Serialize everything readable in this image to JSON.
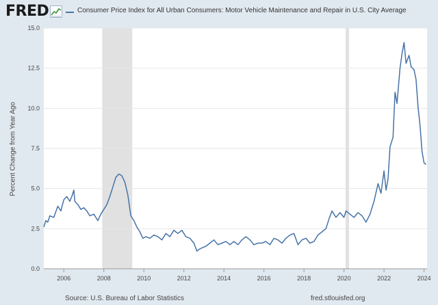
{
  "header": {
    "logo_text": "FRED",
    "logo_icon": "line-chart-icon",
    "legend_label": "Consumer Price Index for All Urban Consumers: Motor Vehicle Maintenance and Repair in U.S. City Average"
  },
  "footer": {
    "source": "Source: U.S. Bureau of Labor Statistics",
    "site": "fred.stlouisfed.org"
  },
  "colors": {
    "page_bg": "#e1e9f0",
    "plot_bg": "#ffffff",
    "series": "#4572a7",
    "recession": "#e1e1e1",
    "grid": "#e6e6e6"
  },
  "chart_data": {
    "type": "line",
    "title": "Consumer Price Index for All Urban Consumers: Motor Vehicle Maintenance and Repair in U.S. City Average",
    "xlabel": "",
    "ylabel": "Percent Change from Year Ago",
    "xlim": [
      2005.0,
      2024.15
    ],
    "ylim": [
      0.0,
      15.0
    ],
    "x_ticks": [
      2006,
      2008,
      2010,
      2012,
      2014,
      2016,
      2018,
      2020,
      2022,
      2024
    ],
    "x_tick_labels": [
      "2006",
      "2008",
      "2010",
      "2012",
      "2014",
      "2016",
      "2018",
      "2020",
      "2022",
      "2024"
    ],
    "y_ticks": [
      0.0,
      2.5,
      5.0,
      7.5,
      10.0,
      12.5,
      15.0
    ],
    "y_tick_labels": [
      "0.0",
      "2.5",
      "5.0",
      "7.5",
      "10.0",
      "12.5",
      "15.0"
    ],
    "grid": true,
    "recessions": [
      {
        "start": 2007.92,
        "end": 2009.42
      },
      {
        "start": 2020.08,
        "end": 2020.25
      }
    ],
    "series": [
      {
        "name": "Consumer Price Index for All Urban Consumers: Motor Vehicle Maintenance and Repair in U.S. City Average",
        "x": [
          2005.0,
          2005.1,
          2005.2,
          2005.3,
          2005.5,
          2005.7,
          2005.85,
          2006.0,
          2006.15,
          2006.3,
          2006.4,
          2006.5,
          2006.55,
          2006.7,
          2006.85,
          2007.0,
          2007.15,
          2007.3,
          2007.5,
          2007.7,
          2007.85,
          2008.0,
          2008.15,
          2008.3,
          2008.45,
          2008.6,
          2008.75,
          2008.9,
          2009.05,
          2009.2,
          2009.35,
          2009.5,
          2009.65,
          2009.8,
          2009.95,
          2010.1,
          2010.3,
          2010.5,
          2010.7,
          2010.9,
          2011.1,
          2011.3,
          2011.5,
          2011.7,
          2011.9,
          2012.1,
          2012.3,
          2012.5,
          2012.65,
          2012.75,
          2012.9,
          2013.1,
          2013.3,
          2013.5,
          2013.7,
          2013.9,
          2014.1,
          2014.3,
          2014.5,
          2014.7,
          2014.9,
          2015.1,
          2015.3,
          2015.5,
          2015.7,
          2015.9,
          2016.1,
          2016.3,
          2016.5,
          2016.7,
          2016.9,
          2017.1,
          2017.3,
          2017.5,
          2017.7,
          2017.9,
          2018.1,
          2018.3,
          2018.5,
          2018.7,
          2018.9,
          2019.1,
          2019.25,
          2019.4,
          2019.6,
          2019.8,
          2020.0,
          2020.1,
          2020.3,
          2020.5,
          2020.7,
          2020.9,
          2021.1,
          2021.3,
          2021.5,
          2021.7,
          2021.85,
          2022.0,
          2022.1,
          2022.2,
          2022.3,
          2022.45,
          2022.55,
          2022.65,
          2022.8,
          2022.9,
          2023.0,
          2023.1,
          2023.25,
          2023.35,
          2023.5,
          2023.6,
          2023.7,
          2023.8,
          2023.9,
          2024.0,
          2024.1
        ],
        "y": [
          2.6,
          3.0,
          2.9,
          3.3,
          3.2,
          3.9,
          3.6,
          4.3,
          4.5,
          4.2,
          4.5,
          4.9,
          4.2,
          4.0,
          3.7,
          3.8,
          3.6,
          3.3,
          3.4,
          3.0,
          3.4,
          3.7,
          4.0,
          4.5,
          5.1,
          5.7,
          5.9,
          5.8,
          5.4,
          4.6,
          3.3,
          3.0,
          2.6,
          2.3,
          1.9,
          2.0,
          1.9,
          2.1,
          2.0,
          1.8,
          2.2,
          2.0,
          2.4,
          2.2,
          2.4,
          2.0,
          1.9,
          1.6,
          1.1,
          1.2,
          1.3,
          1.4,
          1.6,
          1.8,
          1.5,
          1.6,
          1.7,
          1.5,
          1.7,
          1.5,
          1.8,
          2.0,
          1.8,
          1.5,
          1.6,
          1.6,
          1.7,
          1.5,
          1.9,
          1.8,
          1.6,
          1.9,
          2.1,
          2.2,
          1.5,
          1.8,
          1.9,
          1.6,
          1.7,
          2.1,
          2.3,
          2.5,
          3.1,
          3.6,
          3.2,
          3.5,
          3.2,
          3.6,
          3.4,
          3.2,
          3.5,
          3.3,
          2.9,
          3.4,
          4.2,
          5.3,
          4.7,
          6.1,
          4.9,
          5.6,
          7.6,
          8.2,
          11.0,
          10.3,
          12.5,
          13.4,
          14.1,
          12.8,
          13.3,
          12.6,
          12.4,
          11.8,
          10.1,
          8.9,
          7.3,
          6.6,
          6.5
        ]
      }
    ]
  }
}
